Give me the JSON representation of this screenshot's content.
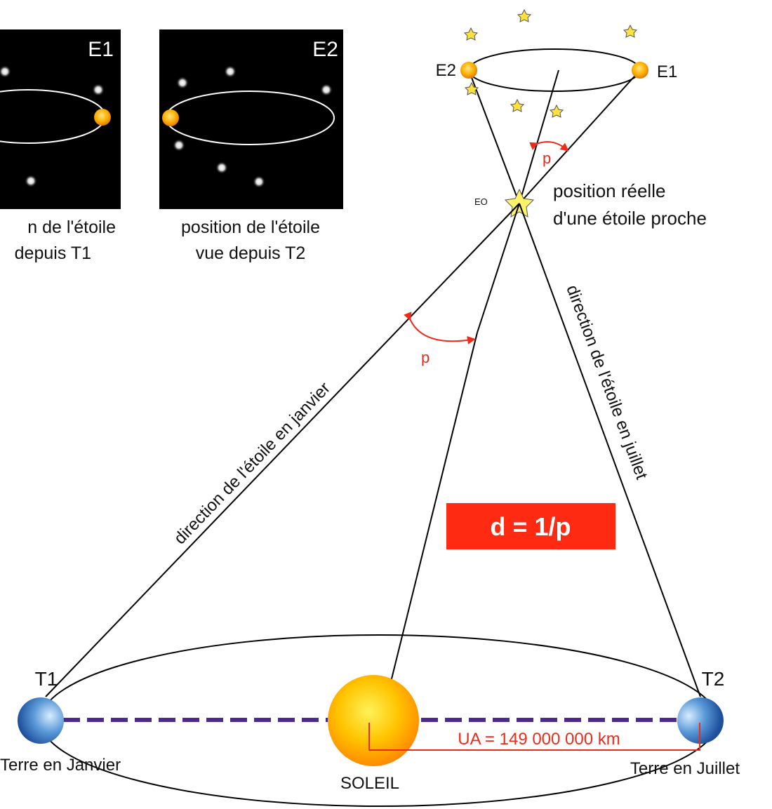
{
  "inset_e1": {
    "label": "E1",
    "caption_line1": "n de l'étoile",
    "caption_line2": "depuis T1"
  },
  "inset_e2": {
    "label": "E2",
    "caption_line1": "position de l'étoile",
    "caption_line2": "vue depuis T2"
  },
  "sky": {
    "label_e2": "E2",
    "label_e1": "E1",
    "label_eo": "EO",
    "parallax_label_top": "p",
    "star_caption_line1": "position réelle",
    "star_caption_line2": "d'une étoile proche"
  },
  "lines": {
    "january_direction": "direction de l'étoile en janvier",
    "july_direction": "direction de l'étoile en juillet",
    "parallax_label_mid": "p"
  },
  "formula": "d = 1/p",
  "orbit": {
    "t1_label": "T1",
    "t2_label": "T2",
    "earth_january": "Terre en Janvier",
    "earth_july": "Terre en Juillet",
    "sun_label": "SOLEIL",
    "au_distance": "UA = 149 000 000 km"
  },
  "colors": {
    "accent_red": "#ee2b1a",
    "formula_bg": "#ff2a12",
    "orbit_dash": "#4b2a8a",
    "sun": "#ffb400",
    "earth": "#3f7fc6",
    "inset_bg": "#000000"
  }
}
